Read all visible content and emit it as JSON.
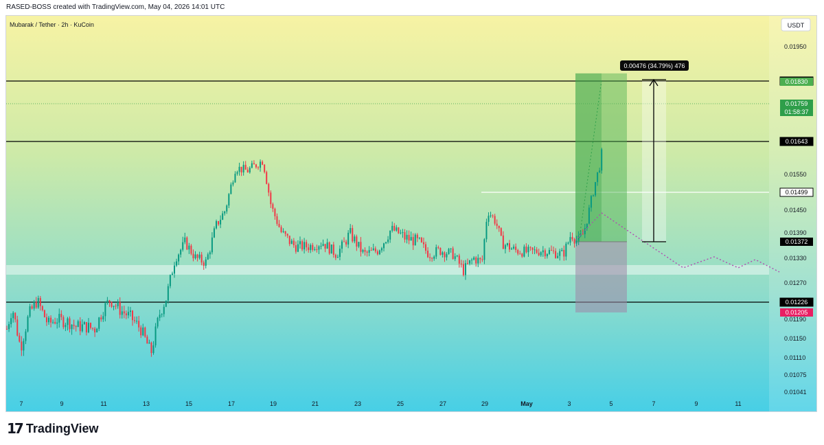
{
  "header": {
    "credit": "RASED-BOSS created with TradingView.com, May 04, 2026 14:01 UTC"
  },
  "chart_data": {
    "type": "candlestick",
    "title": "Mubarak / Tether · 2h · KuCoin",
    "currency": "USDT",
    "y_ticks": [
      "0.01950",
      "0.01550",
      "0.01450",
      "0.01390",
      "0.01330",
      "0.01270",
      "0.01190",
      "0.01150",
      "0.01110",
      "0.01075",
      "0.01041"
    ],
    "x_ticks": [
      "7",
      "9",
      "11",
      "13",
      "15",
      "17",
      "19",
      "21",
      "23",
      "25",
      "27",
      "29",
      "May",
      "3",
      "5",
      "7",
      "9",
      "11"
    ],
    "horizontal_levels": [
      {
        "label": "0.01833",
        "value": 0.01833,
        "style": "black"
      },
      {
        "label": "0.01643",
        "value": 0.01643,
        "style": "black"
      },
      {
        "label": "0.01499",
        "value": 0.01499,
        "style": "white"
      },
      {
        "label": "0.01226",
        "value": 0.01226,
        "style": "black"
      }
    ],
    "price_labels": [
      {
        "label": "0.01830",
        "color": "#4caf50"
      },
      {
        "label": "0.01759",
        "color": "#2e9e4a",
        "sub": "01:58:37"
      },
      {
        "label": "0.01372",
        "color": "#000000"
      },
      {
        "label": "0.01205",
        "color": "#e91e63"
      }
    ],
    "current_price": 0.01759,
    "support_zone": [
      0.0129,
      0.01312
    ],
    "position": {
      "entry": 0.01372,
      "target": 0.0183,
      "stop": 0.01205
    },
    "measure_label": "0.00476 (34.79%) 476",
    "colors": {
      "up": "#089981",
      "down": "#f23645",
      "bg_top": "#f6f2a3",
      "bg_bottom": "#4fd2e6"
    }
  },
  "footer": {
    "brand": "TradingView"
  }
}
